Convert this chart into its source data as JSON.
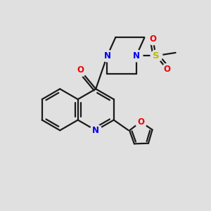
{
  "bg_color": "#e0e0e0",
  "bond_color": "#1a1a1a",
  "N_color": "#0000ee",
  "O_color": "#ee0000",
  "S_color": "#bbbb00",
  "line_width": 1.6,
  "figsize": [
    3.0,
    3.0
  ],
  "dpi": 100,
  "xlim": [
    0,
    10
  ],
  "ylim": [
    0,
    10
  ]
}
